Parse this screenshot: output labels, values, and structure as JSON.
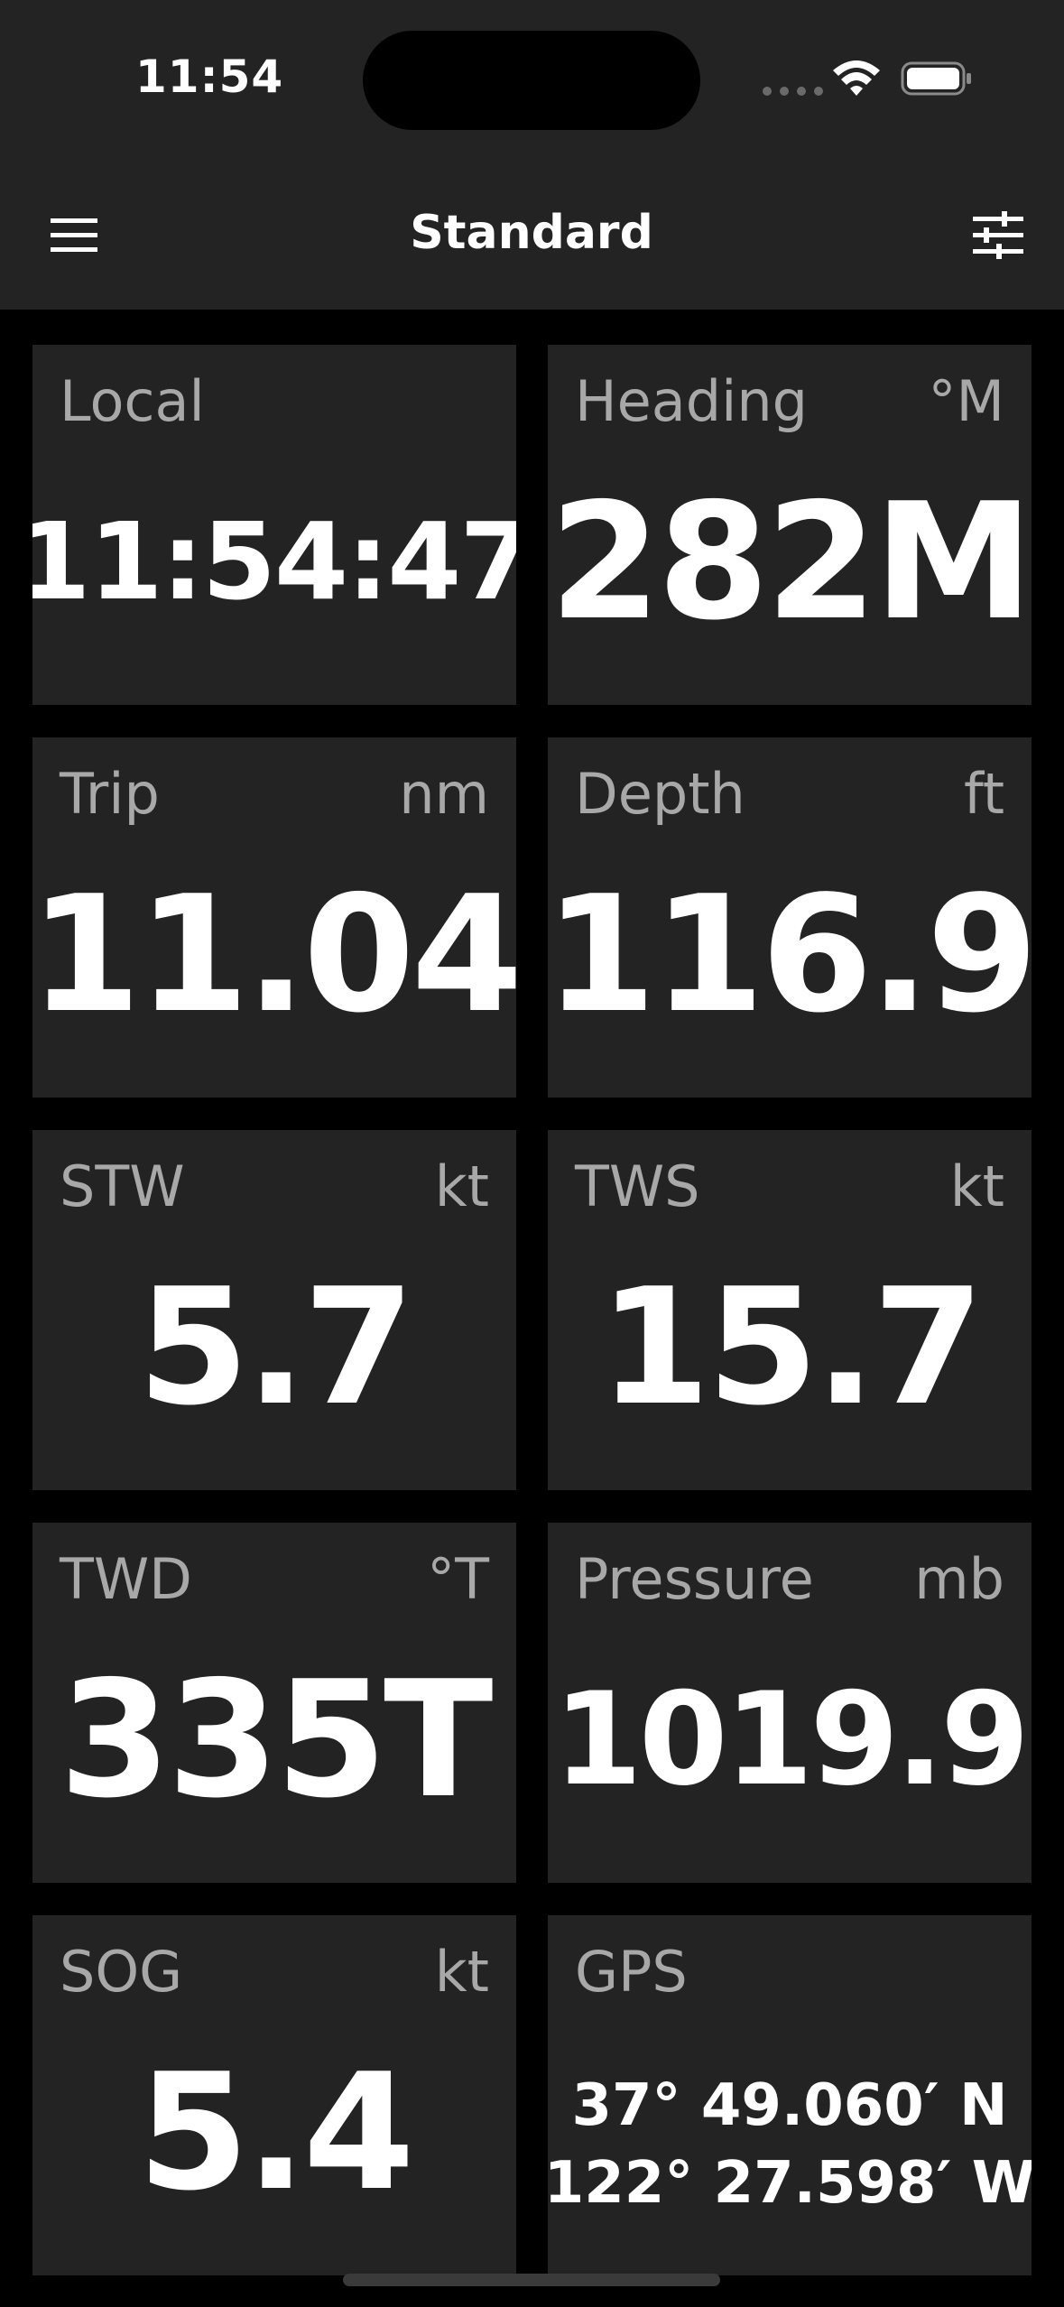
{
  "status_bar": {
    "time": "11:54"
  },
  "nav": {
    "title": "Standard"
  },
  "tiles": {
    "local": {
      "label": "Local",
      "unit": "",
      "value": "11:54:47"
    },
    "heading": {
      "label": "Heading",
      "unit": "°M",
      "value": "282M"
    },
    "trip": {
      "label": "Trip",
      "unit": "nm",
      "value": "11.04"
    },
    "depth": {
      "label": "Depth",
      "unit": "ft",
      "value": "116.9"
    },
    "stw": {
      "label": "STW",
      "unit": "kt",
      "value": "5.7"
    },
    "tws": {
      "label": "TWS",
      "unit": "kt",
      "value": "15.7"
    },
    "twd": {
      "label": "TWD",
      "unit": "°T",
      "value": "335T"
    },
    "pressure": {
      "label": "Pressure",
      "unit": "mb",
      "value": "1019.9"
    },
    "sog": {
      "label": "SOG",
      "unit": "kt",
      "value": "5.4"
    },
    "gps": {
      "label": "GPS",
      "unit": "",
      "lat": "37° 49.060′ N",
      "lon": "122° 27.598′ W"
    }
  },
  "icons": {
    "menu": "hamburger-icon",
    "settings": "sliders-icon",
    "wifi": "wifi-icon",
    "battery": "battery-icon"
  },
  "colors": {
    "background": "#000000",
    "tile": "#232323",
    "label": "#a8a8a8",
    "value": "#ffffff"
  }
}
